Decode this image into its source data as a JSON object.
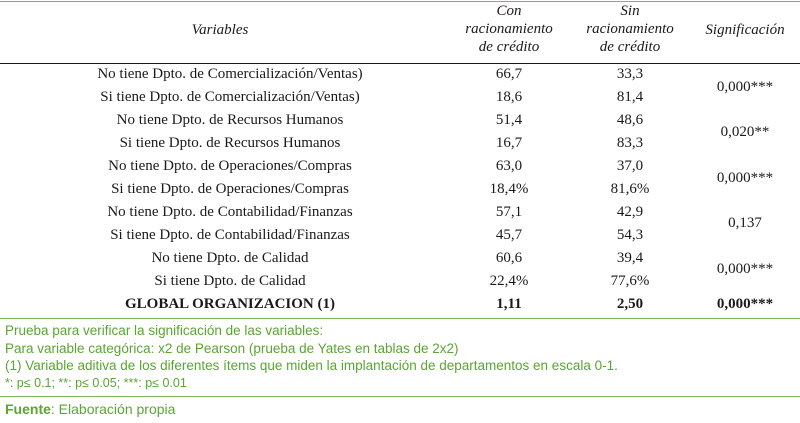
{
  "table": {
    "headers": {
      "variables": "Variables",
      "con": [
        "Con",
        "racionamiento",
        "de crédito"
      ],
      "sin": [
        "Sin",
        "racionamiento",
        "de crédito"
      ],
      "significacion": "Significación"
    },
    "rows": [
      {
        "label": "No tiene Dpto. de Comercialización/Ventas)",
        "con": "66,7",
        "sin": "33,3"
      },
      {
        "label": "Si tiene Dpto. de Comercialización/Ventas)",
        "con": "18,6",
        "sin": "81,4"
      },
      {
        "label": "No tiene Dpto. de Recursos Humanos",
        "con": "51,4",
        "sin": "48,6"
      },
      {
        "label": "Si tiene Dpto. de Recursos Humanos",
        "con": "16,7",
        "sin": "83,3"
      },
      {
        "label": "No tiene Dpto. de Operaciones/Compras",
        "con": "63,0",
        "sin": "37,0"
      },
      {
        "label": "Si tiene Dpto. de Operaciones/Compras",
        "con": "18,4%",
        "sin": "81,6%"
      },
      {
        "label": "No tiene Dpto. de Contabilidad/Finanzas",
        "con": "57,1",
        "sin": "42,9"
      },
      {
        "label": "Si tiene Dpto. de Contabilidad/Finanzas",
        "con": "45,7",
        "sin": "54,3"
      },
      {
        "label": "No tiene Dpto. de Calidad",
        "con": "60,6",
        "sin": "39,4"
      },
      {
        "label": "Si tiene Dpto. de Calidad",
        "con": "22,4%",
        "sin": "77,6%"
      },
      {
        "label": "GLOBAL ORGANIZACION (1)",
        "con": "1,11",
        "sin": "2,50"
      }
    ],
    "significance": [
      "0,000***",
      "0,020**",
      "0,000***",
      "0,137",
      "0,000***",
      "0,000***"
    ]
  },
  "notes": {
    "line1": "Prueba para verificar la significación de las variables:",
    "line2": "Para variable categórica: x2 de Pearson (prueba de Yates en tablas de 2x2)",
    "line3": "(1) Variable aditiva de los diferentes ítems que miden la implantación de departamentos en escala 0-1.",
    "line4": "*: p≤ 0.1; **: p≤ 0.05; ***: p≤ 0.01"
  },
  "source": {
    "label": "Fuente",
    "text": ": Elaboración propia"
  }
}
